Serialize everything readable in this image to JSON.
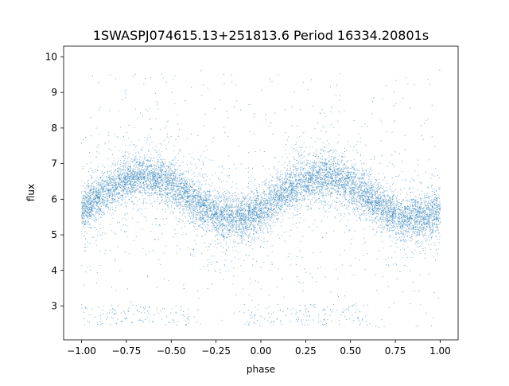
{
  "chart_data": {
    "type": "scatter",
    "title": "1SWASPJ074615.13+251813.6 Period 16334.20801s",
    "xlabel": "phase",
    "ylabel": "flux",
    "xlim": [
      -1.1,
      1.1
    ],
    "ylim": [
      2.05,
      10.3
    ],
    "xticks": [
      -1.0,
      -0.75,
      -0.5,
      -0.25,
      0.0,
      0.25,
      0.5,
      0.75,
      1.0
    ],
    "xtick_labels": [
      "−1.00",
      "−0.75",
      "−0.50",
      "−0.25",
      "0.00",
      "0.25",
      "0.50",
      "0.75",
      "1.00"
    ],
    "yticks": [
      3,
      4,
      5,
      6,
      7,
      8,
      9,
      10
    ],
    "ytick_labels": [
      "3",
      "4",
      "5",
      "6",
      "7",
      "8",
      "9",
      "10"
    ],
    "grid": false,
    "legend": "none",
    "marker_color": "#1f77b4",
    "description_of_trend": "sinusoidal light curve",
    "model": {
      "x_range": [
        -1.0,
        1.0
      ],
      "mean_flux": 6.05,
      "amplitude": 0.6,
      "max_phase": [
        -0.65,
        0.35
      ],
      "min_phase": [
        -0.15,
        0.85
      ],
      "band_sigma": 0.3,
      "outlier_range": [
        2.4,
        9.7
      ]
    },
    "series": [
      {
        "points_sample": [
          [
            -1.0,
            5.7
          ],
          [
            -0.9,
            6.0
          ],
          [
            -0.8,
            6.5
          ],
          [
            -0.7,
            6.6
          ],
          [
            -0.65,
            6.65
          ],
          [
            -0.55,
            6.55
          ],
          [
            -0.45,
            6.3
          ],
          [
            -0.35,
            5.9
          ],
          [
            -0.25,
            5.6
          ],
          [
            -0.15,
            5.45
          ],
          [
            -0.05,
            5.6
          ],
          [
            0.05,
            5.9
          ],
          [
            0.15,
            6.3
          ],
          [
            0.25,
            6.55
          ],
          [
            0.35,
            6.65
          ],
          [
            0.45,
            6.55
          ],
          [
            0.55,
            6.3
          ],
          [
            0.65,
            5.9
          ],
          [
            0.75,
            5.6
          ],
          [
            0.85,
            5.45
          ],
          [
            0.95,
            5.55
          ],
          [
            1.0,
            5.7
          ]
        ]
      }
    ]
  }
}
